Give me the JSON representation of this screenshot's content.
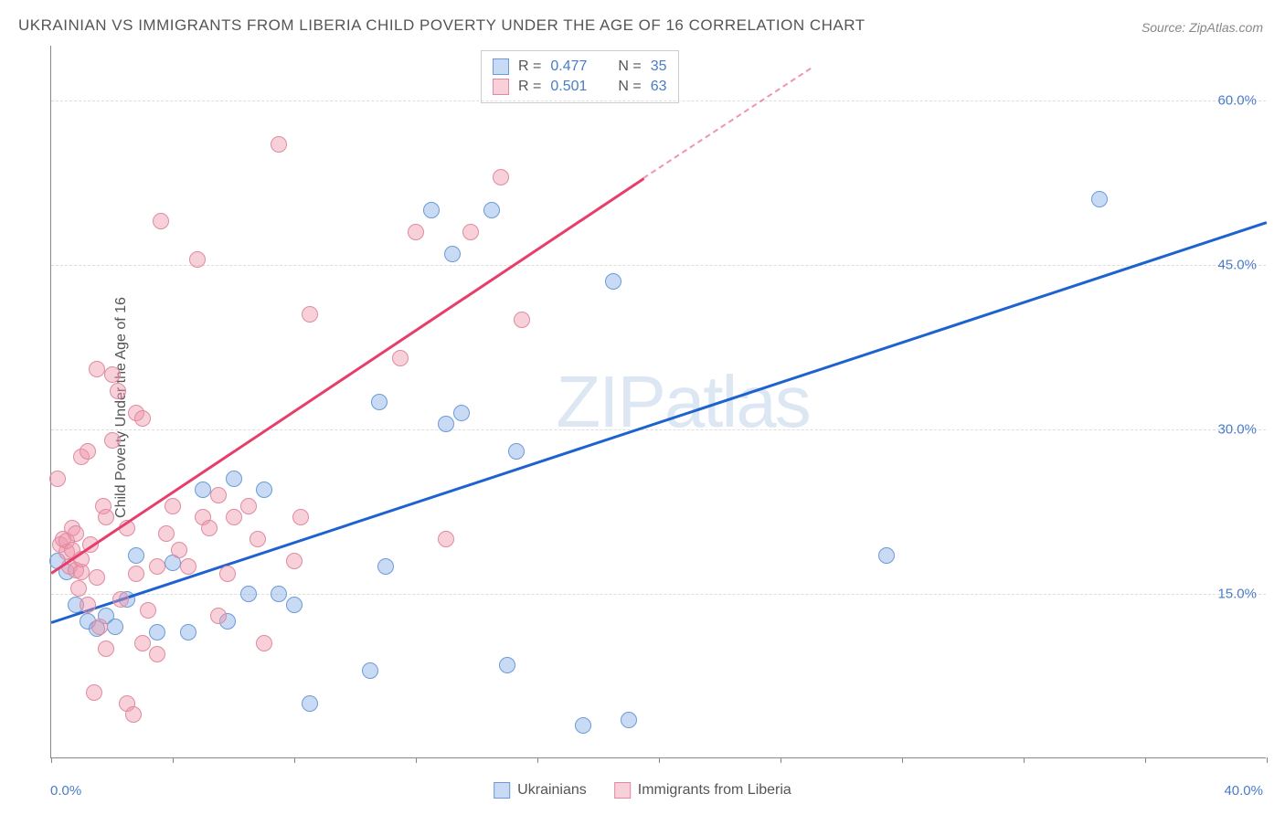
{
  "title": "UKRAINIAN VS IMMIGRANTS FROM LIBERIA CHILD POVERTY UNDER THE AGE OF 16 CORRELATION CHART",
  "source": "Source: ZipAtlas.com",
  "y_axis_label": "Child Poverty Under the Age of 16",
  "watermark_a": "ZIP",
  "watermark_b": "atlas",
  "chart": {
    "type": "scatter",
    "xlim": [
      0,
      40
    ],
    "ylim": [
      0,
      65
    ],
    "x_ticks": [
      0,
      4,
      8,
      12,
      16,
      20,
      24,
      28,
      32,
      36,
      40
    ],
    "y_grid": [
      15,
      30,
      45,
      60
    ],
    "y_tick_labels": [
      "15.0%",
      "30.0%",
      "45.0%",
      "60.0%"
    ],
    "x_label_start": "0.0%",
    "x_label_end": "40.0%",
    "background": "#ffffff",
    "grid_color": "#dddddd",
    "axis_color": "#888888",
    "series": [
      {
        "name": "Ukrainians",
        "color_fill": "rgba(135,175,230,0.45)",
        "color_stroke": "#6a9bd8",
        "trend_color": "#1e62d0",
        "R": "0.477",
        "N": "35",
        "trend": {
          "x1": 0,
          "y1": 12.5,
          "x2": 40,
          "y2": 49
        },
        "points": [
          [
            0.2,
            18
          ],
          [
            0.5,
            17
          ],
          [
            0.8,
            14
          ],
          [
            1.2,
            12.5
          ],
          [
            1.5,
            11.8
          ],
          [
            1.8,
            13
          ],
          [
            2.1,
            12
          ],
          [
            2.5,
            14.5
          ],
          [
            2.8,
            18.5
          ],
          [
            3.5,
            11.5
          ],
          [
            4.0,
            17.8
          ],
          [
            4.5,
            11.5
          ],
          [
            5.0,
            24.5
          ],
          [
            5.8,
            12.5
          ],
          [
            6.0,
            25.5
          ],
          [
            6.5,
            15
          ],
          [
            7.0,
            24.5
          ],
          [
            7.5,
            15
          ],
          [
            8.0,
            14
          ],
          [
            8.5,
            5
          ],
          [
            10.5,
            8
          ],
          [
            10.8,
            32.5
          ],
          [
            11.0,
            17.5
          ],
          [
            12.5,
            50
          ],
          [
            13.0,
            30.5
          ],
          [
            13.2,
            46
          ],
          [
            13.5,
            31.5
          ],
          [
            14.5,
            50
          ],
          [
            15.0,
            8.5
          ],
          [
            15.3,
            28
          ],
          [
            17.5,
            3
          ],
          [
            18.5,
            43.5
          ],
          [
            19.0,
            3.5
          ],
          [
            27.5,
            18.5
          ],
          [
            34.5,
            51
          ]
        ]
      },
      {
        "name": "Immigrants from Liberia",
        "color_fill": "rgba(240,150,170,0.45)",
        "color_stroke": "#e08aa0",
        "trend_color": "#e73d6a",
        "R": "0.501",
        "N": "63",
        "trend": {
          "x1": 0,
          "y1": 17,
          "x2": 19.5,
          "y2": 53
        },
        "trend_dash": {
          "x1": 19.5,
          "y1": 53,
          "x2": 25,
          "y2": 63
        },
        "points": [
          [
            0.2,
            25.5
          ],
          [
            0.3,
            19.5
          ],
          [
            0.4,
            20
          ],
          [
            0.5,
            18.8
          ],
          [
            0.5,
            19.8
          ],
          [
            0.6,
            17.5
          ],
          [
            0.7,
            21
          ],
          [
            0.7,
            19
          ],
          [
            0.8,
            17.2
          ],
          [
            0.8,
            20.5
          ],
          [
            0.9,
            15.5
          ],
          [
            1.0,
            27.5
          ],
          [
            1.0,
            17
          ],
          [
            1.0,
            18.2
          ],
          [
            1.2,
            14
          ],
          [
            1.2,
            28
          ],
          [
            1.3,
            19.5
          ],
          [
            1.4,
            6
          ],
          [
            1.5,
            35.5
          ],
          [
            1.5,
            16.5
          ],
          [
            1.6,
            12
          ],
          [
            1.7,
            23
          ],
          [
            1.8,
            22
          ],
          [
            1.8,
            10
          ],
          [
            2.0,
            29
          ],
          [
            2.0,
            35
          ],
          [
            2.2,
            33.5
          ],
          [
            2.3,
            14.5
          ],
          [
            2.5,
            21
          ],
          [
            2.5,
            5
          ],
          [
            2.7,
            4
          ],
          [
            2.8,
            31.5
          ],
          [
            2.8,
            16.8
          ],
          [
            3.0,
            10.5
          ],
          [
            3.0,
            31
          ],
          [
            3.2,
            13.5
          ],
          [
            3.5,
            9.5
          ],
          [
            3.5,
            17.5
          ],
          [
            3.6,
            49
          ],
          [
            3.8,
            20.5
          ],
          [
            4.0,
            23
          ],
          [
            4.2,
            19
          ],
          [
            4.5,
            17.5
          ],
          [
            4.8,
            45.5
          ],
          [
            5.0,
            22
          ],
          [
            5.2,
            21
          ],
          [
            5.5,
            13
          ],
          [
            5.5,
            24
          ],
          [
            5.8,
            16.8
          ],
          [
            6.0,
            22
          ],
          [
            6.5,
            23
          ],
          [
            6.8,
            20
          ],
          [
            7.0,
            10.5
          ],
          [
            7.5,
            56
          ],
          [
            8.0,
            18
          ],
          [
            8.2,
            22
          ],
          [
            8.5,
            40.5
          ],
          [
            11.5,
            36.5
          ],
          [
            12.0,
            48
          ],
          [
            13.0,
            20
          ],
          [
            13.8,
            48
          ],
          [
            14.8,
            53
          ],
          [
            15.5,
            40
          ]
        ]
      }
    ]
  },
  "legend_top": {
    "rows": [
      {
        "swatch_fill": "rgba(135,175,230,0.45)",
        "swatch_stroke": "#6a9bd8",
        "r_label": "R =",
        "r_val": "0.477",
        "n_label": "N =",
        "n_val": "35"
      },
      {
        "swatch_fill": "rgba(240,150,170,0.45)",
        "swatch_stroke": "#e08aa0",
        "r_label": "R =",
        "r_val": "0.501",
        "n_label": "N =",
        "n_val": "63"
      }
    ]
  },
  "legend_bottom": [
    {
      "swatch_fill": "rgba(135,175,230,0.45)",
      "swatch_stroke": "#6a9bd8",
      "label": "Ukrainians"
    },
    {
      "swatch_fill": "rgba(240,150,170,0.45)",
      "swatch_stroke": "#e08aa0",
      "label": "Immigrants from Liberia"
    }
  ]
}
